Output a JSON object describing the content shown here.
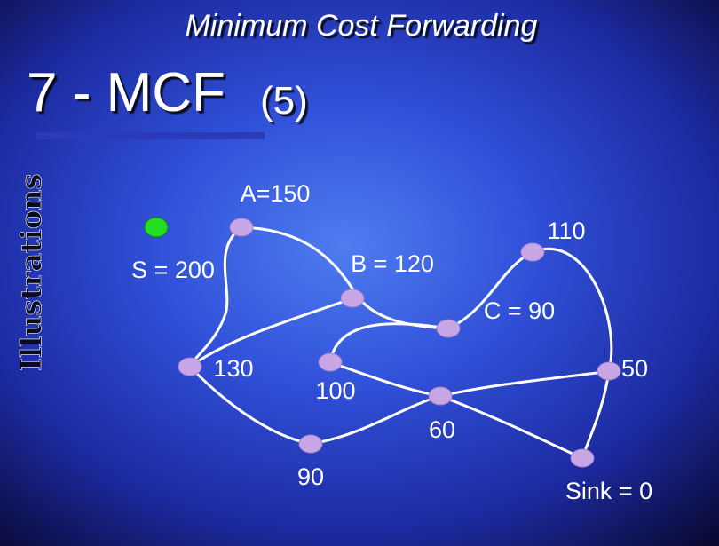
{
  "header": {
    "subtitle": "Minimum Cost Forwarding",
    "title": "7 - MCF",
    "title_suffix": "(5)"
  },
  "side_label": "Illustrations",
  "nodes": [
    {
      "label": "A=150"
    },
    {
      "label": "110"
    },
    {
      "label": "B = 120"
    },
    {
      "label": "S = 200"
    },
    {
      "label": "C = 90"
    },
    {
      "label": "130"
    },
    {
      "label": "100"
    },
    {
      "label": "50"
    },
    {
      "label": "60"
    },
    {
      "label": "90"
    },
    {
      "label": "Sink = 0"
    }
  ]
}
